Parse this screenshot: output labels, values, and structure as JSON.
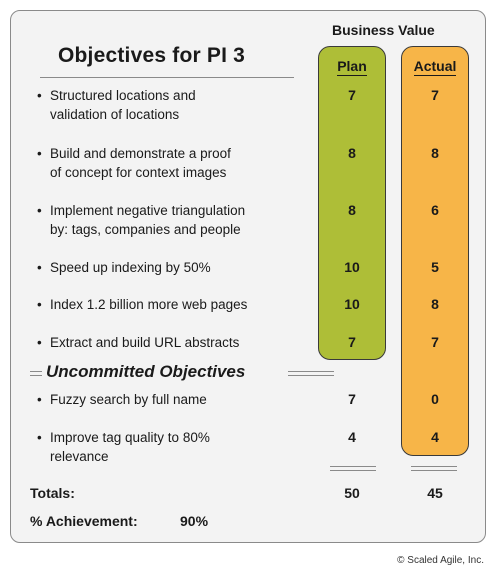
{
  "title": "Objectives for PI 3",
  "business_value_header": "Business Value",
  "columns": {
    "plan": "Plan",
    "actual": "Actual"
  },
  "committed_objectives": [
    {
      "text_line1": "Structured locations and",
      "text_line2": "validation of locations",
      "plan": "7",
      "actual": "7"
    },
    {
      "text_line1": "Build and demonstrate a proof",
      "text_line2": "of concept for context images",
      "plan": "8",
      "actual": "8"
    },
    {
      "text_line1": "Implement negative triangulation",
      "text_line2": "by: tags, companies and people",
      "plan": "8",
      "actual": "6"
    },
    {
      "text_line1": "Speed up indexing by 50%",
      "text_line2": "",
      "plan": "10",
      "actual": "5"
    },
    {
      "text_line1": "Index 1.2 billion more web pages",
      "text_line2": "",
      "plan": "10",
      "actual": "8"
    },
    {
      "text_line1": "Extract and build URL abstracts",
      "text_line2": "",
      "plan": "7",
      "actual": "7"
    }
  ],
  "uncommitted_header": "Uncommitted Objectives",
  "uncommitted_objectives": [
    {
      "text_line1": "Fuzzy search by full name",
      "text_line2": "",
      "plan": "7",
      "actual": "0"
    },
    {
      "text_line1": "Improve tag quality to 80%",
      "text_line2": "relevance",
      "plan": "4",
      "actual": "4"
    }
  ],
  "bullet": "•",
  "totals": {
    "label": "Totals:",
    "plan": "50",
    "actual": "45"
  },
  "achievement": {
    "label": "% Achievement:",
    "value": "90%"
  },
  "copyright": "© Scaled Agile, Inc.",
  "colors": {
    "plan_fill": "#aebe37",
    "actual_fill": "#f7b548",
    "card_bg": "#f3f3f3"
  }
}
